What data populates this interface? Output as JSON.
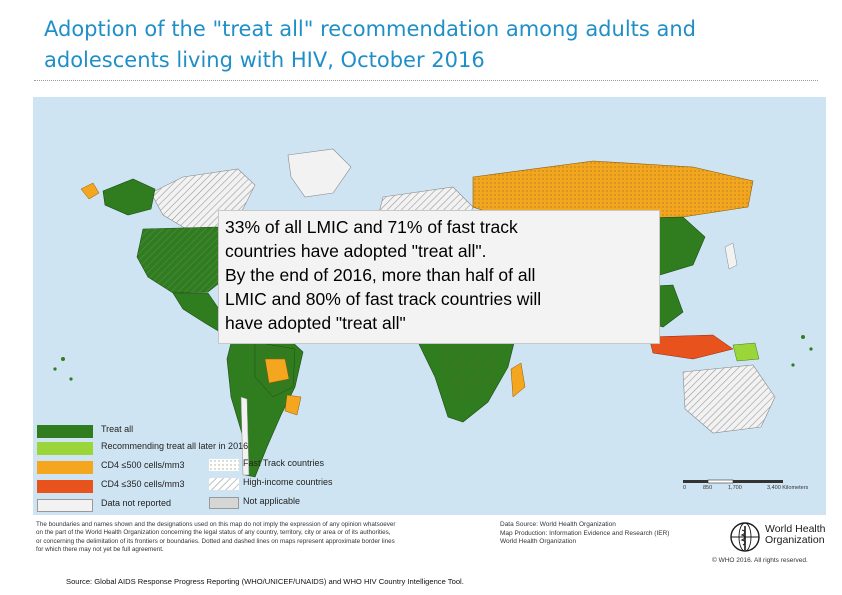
{
  "title": {
    "line1": "Adoption of the \"treat all\" recommendation among adults and",
    "line2": "adolescents living with HIV, October 2016"
  },
  "callout": {
    "line1": "33% of all LMIC and 71% of fast track",
    "line2": "countries have adopted \"treat all\".",
    "line3": "By the end of 2016, more than half of all",
    "line4": "LMIC and 80% of fast track countries will",
    "line5": "have adopted \"treat all\""
  },
  "legend": {
    "items": [
      {
        "label": "Treat all",
        "color": "#2f7d1f"
      },
      {
        "label": "Recommending treat all later in 2016",
        "color": "#9ad53a"
      },
      {
        "label": "CD4 ≤500 cells/mm3",
        "color": "#f5a61f"
      },
      {
        "label": "CD4 ≤350 cells/mm3",
        "color": "#e8521d"
      },
      {
        "label": "Data not reported",
        "color": "#f2f2f2"
      }
    ],
    "patterns": [
      {
        "label": "Fast Track countries",
        "pattern": "dots"
      },
      {
        "label": "High-income countries",
        "pattern": "hatch"
      },
      {
        "label": "Not applicable",
        "color": "#d6d6d6"
      }
    ]
  },
  "scale": {
    "ticks": [
      "0",
      "850",
      "1,700",
      "3,400 Kilometers"
    ]
  },
  "disclaimer": {
    "line1": "The boundaries and names shown and the designations used on this map do not imply the expression of any opinion whatsoever",
    "line2": "on the part of the World Health Organization concerning the legal status of any country, territory, city or area or of its authorities,",
    "line3": "or concerning the delimitation of its frontiers or boundaries. Dotted and dashed lines on maps represent approximate border lines",
    "line4": "for which there may not yet be full agreement."
  },
  "production": {
    "line1": "Data Source: World Health Organization",
    "line2": "Map Production: Information Evidence and Research (IER)",
    "line3": "World Health Organization"
  },
  "who": {
    "name_line1": "World Health",
    "name_line2": "Organization",
    "copyright": "© WHO 2016. All rights reserved."
  },
  "source": "Source: Global AIDS Response Progress Reporting (WHO/UNICEF/UNAIDS) and WHO HIV Country Intelligence Tool.",
  "colors": {
    "title": "#1f8fc8",
    "ocean": "#cfe4f2"
  }
}
